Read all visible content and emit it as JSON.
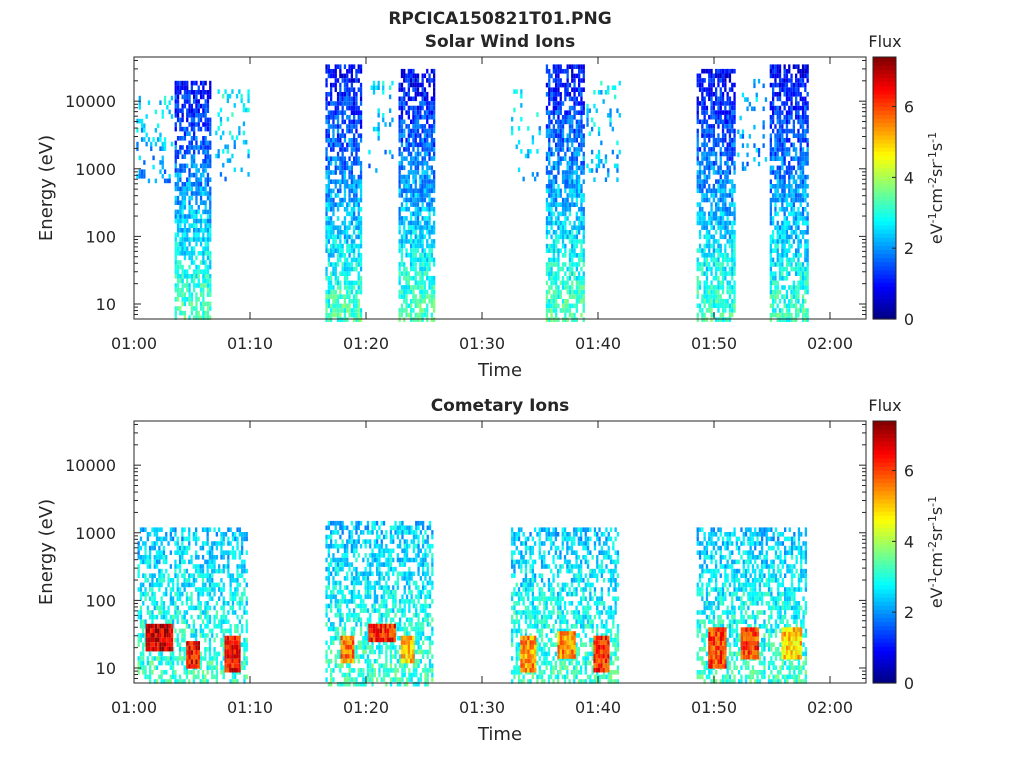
{
  "figure_title": "RPCICA150821T01.PNG",
  "colorbar": {
    "title": "Flux",
    "colors": [
      "#00007f",
      "#0000ff",
      "#007fff",
      "#00ffff",
      "#7fff7f",
      "#ffff00",
      "#ff7f00",
      "#ff0000",
      "#7f0000"
    ]
  },
  "chart_data": [
    {
      "type": "heatmap",
      "title": "Solar Wind Ions",
      "xlabel": "Time",
      "ylabel": "Energy (eV)",
      "x_tick_labels": [
        "01:00",
        "01:10",
        "01:20",
        "01:30",
        "01:40",
        "01:50",
        "02:00"
      ],
      "x_range_minutes": [
        0,
        63
      ],
      "y_scale": "log",
      "y_range": [
        6,
        45000
      ],
      "y_ticks": [
        10,
        100,
        1000,
        10000
      ],
      "y_tick_labels": [
        "10",
        "100",
        "1000",
        "10000"
      ],
      "colorbar_label": "eV-1cm-2sr-1s-1",
      "colorbar_range": [
        0,
        7.4
      ],
      "colorbar_ticks": [
        0,
        2,
        4,
        6
      ],
      "colorbar_tick_labels": [
        "0",
        "2",
        "4",
        "6"
      ],
      "blobs": [
        {
          "t0": 0.2,
          "t1": 3.2,
          "emin": 700,
          "emax": 12000,
          "flux_hi": 2.6,
          "flux_lo": 2.0,
          "density": 0.22
        },
        {
          "t0": 3.5,
          "t1": 6.6,
          "emin": 6,
          "emax": 20000,
          "flux_hi": 1.0,
          "flux_lo": 3.4,
          "density": 0.7
        },
        {
          "t0": 7.0,
          "t1": 9.8,
          "emin": 700,
          "emax": 15000,
          "flux_hi": 2.8,
          "flux_lo": 2.2,
          "density": 0.2
        },
        {
          "t0": 16.5,
          "t1": 19.5,
          "emin": 6,
          "emax": 35000,
          "flux_hi": 0.9,
          "flux_lo": 3.3,
          "density": 0.72
        },
        {
          "t0": 20.0,
          "t1": 22.3,
          "emin": 800,
          "emax": 20000,
          "flux_hi": 2.6,
          "flux_lo": 2.0,
          "density": 0.15
        },
        {
          "t0": 22.8,
          "t1": 25.8,
          "emin": 6,
          "emax": 30000,
          "flux_hi": 0.9,
          "flux_lo": 3.4,
          "density": 0.72
        },
        {
          "t0": 32.5,
          "t1": 35.0,
          "emin": 700,
          "emax": 15000,
          "flux_hi": 2.6,
          "flux_lo": 2.2,
          "density": 0.15
        },
        {
          "t0": 35.5,
          "t1": 38.8,
          "emin": 6,
          "emax": 35000,
          "flux_hi": 1.0,
          "flux_lo": 3.4,
          "density": 0.72
        },
        {
          "t0": 39.0,
          "t1": 41.8,
          "emin": 700,
          "emax": 20000,
          "flux_hi": 2.6,
          "flux_lo": 2.2,
          "density": 0.2
        },
        {
          "t0": 48.5,
          "t1": 51.8,
          "emin": 6,
          "emax": 30000,
          "flux_hi": 0.9,
          "flux_lo": 3.3,
          "density": 0.72
        },
        {
          "t0": 52.0,
          "t1": 54.5,
          "emin": 1000,
          "emax": 25000,
          "flux_hi": 2.4,
          "flux_lo": 2.0,
          "density": 0.15
        },
        {
          "t0": 54.8,
          "t1": 58.0,
          "emin": 6,
          "emax": 35000,
          "flux_hi": 0.9,
          "flux_lo": 3.2,
          "density": 0.72
        }
      ]
    },
    {
      "type": "heatmap",
      "title": "Cometary Ions",
      "xlabel": "Time",
      "ylabel": "Energy (eV)",
      "x_tick_labels": [
        "01:00",
        "01:10",
        "01:20",
        "01:30",
        "01:40",
        "01:50",
        "02:00"
      ],
      "x_range_minutes": [
        0,
        63
      ],
      "y_scale": "log",
      "y_range": [
        6,
        45000
      ],
      "y_ticks": [
        10,
        100,
        1000,
        10000
      ],
      "y_tick_labels": [
        "10",
        "100",
        "1000",
        "10000"
      ],
      "colorbar_label": "eV-1cm-2sr-1s-1",
      "colorbar_range": [
        0,
        7.4
      ],
      "colorbar_ticks": [
        0,
        2,
        4,
        6
      ],
      "colorbar_tick_labels": [
        "0",
        "2",
        "4",
        "6"
      ],
      "blobs": [
        {
          "t0": 0.3,
          "t1": 9.8,
          "emin": 6,
          "emax": 1200,
          "flux_hi": 2.4,
          "flux_lo": 3.2,
          "density": 0.55
        },
        {
          "t0": 16.5,
          "t1": 25.8,
          "emin": 6,
          "emax": 1500,
          "flux_hi": 2.4,
          "flux_lo": 3.2,
          "density": 0.58
        },
        {
          "t0": 32.5,
          "t1": 41.8,
          "emin": 6,
          "emax": 1200,
          "flux_hi": 2.4,
          "flux_lo": 3.2,
          "density": 0.55
        },
        {
          "t0": 48.5,
          "t1": 58.0,
          "emin": 6,
          "emax": 1200,
          "flux_hi": 2.4,
          "flux_lo": 3.2,
          "density": 0.6
        }
      ],
      "hotspots": [
        {
          "t0": 1.0,
          "t1": 3.2,
          "emin": 20,
          "emax": 45,
          "flux": 6.8
        },
        {
          "t0": 4.5,
          "t1": 5.6,
          "emin": 10,
          "emax": 25,
          "flux": 6.4
        },
        {
          "t0": 7.8,
          "t1": 9.0,
          "emin": 10,
          "emax": 30,
          "flux": 6.4
        },
        {
          "t0": 17.8,
          "t1": 18.8,
          "emin": 12,
          "emax": 30,
          "flux": 5.6
        },
        {
          "t0": 20.2,
          "t1": 22.5,
          "emin": 25,
          "emax": 45,
          "flux": 6.2
        },
        {
          "t0": 23.0,
          "t1": 24.0,
          "emin": 12,
          "emax": 30,
          "flux": 5.0
        },
        {
          "t0": 33.3,
          "t1": 34.5,
          "emin": 10,
          "emax": 30,
          "flux": 5.4
        },
        {
          "t0": 36.5,
          "t1": 38.0,
          "emin": 15,
          "emax": 35,
          "flux": 5.4
        },
        {
          "t0": 39.6,
          "t1": 40.8,
          "emin": 10,
          "emax": 30,
          "flux": 6.2
        },
        {
          "t0": 49.5,
          "t1": 51.0,
          "emin": 10,
          "emax": 40,
          "flux": 6.0
        },
        {
          "t0": 52.3,
          "t1": 53.8,
          "emin": 15,
          "emax": 40,
          "flux": 6.0
        },
        {
          "t0": 55.8,
          "t1": 57.5,
          "emin": 15,
          "emax": 40,
          "flux": 5.0
        }
      ]
    }
  ]
}
